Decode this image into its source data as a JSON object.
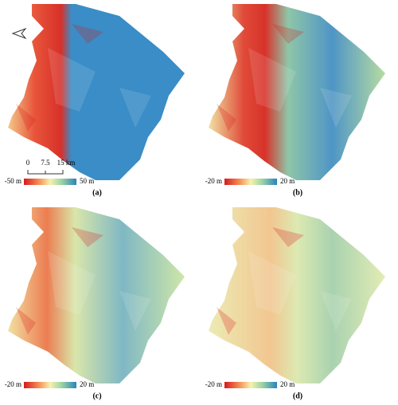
{
  "panels": [
    {
      "label": "(a)",
      "colorbar": {
        "min_label": "-50 m",
        "max_label": "50 m"
      },
      "scale_bar": {
        "ticks": [
          "0",
          "7.5",
          "15 km"
        ]
      }
    },
    {
      "label": "(b)",
      "colorbar": {
        "min_label": "-20 m",
        "max_label": "20 m"
      }
    },
    {
      "label": "(c)",
      "colorbar": {
        "min_label": "-20 m",
        "max_label": "20 m"
      }
    },
    {
      "label": "(d)",
      "colorbar": {
        "min_label": "-20 m",
        "max_label": "20 m"
      }
    }
  ]
}
